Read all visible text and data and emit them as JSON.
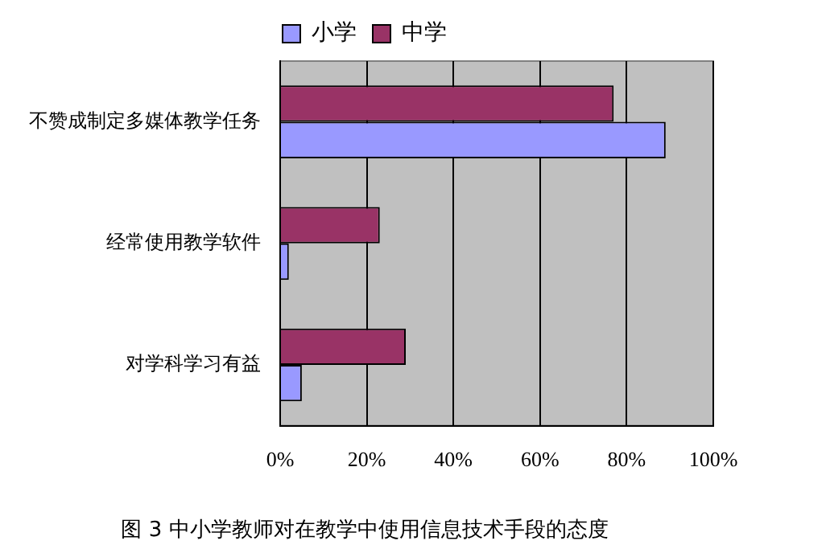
{
  "chart_data": {
    "type": "bar",
    "orientation": "horizontal",
    "title": "图 3 中小学教师对在教学中使用信息技术手段的态度",
    "categories": [
      "不赞成制定多媒体教学任务",
      "经常使用教学软件",
      "对学科学习有益"
    ],
    "series": [
      {
        "name": "中学",
        "color": "#993366",
        "values": [
          77,
          23,
          29
        ]
      },
      {
        "name": "小学",
        "color": "#9999ff",
        "values": [
          89,
          2,
          5
        ]
      }
    ],
    "xlim": [
      0,
      100
    ],
    "xticks": [
      {
        "value": 0,
        "label": "0%"
      },
      {
        "value": 20,
        "label": "20%"
      },
      {
        "value": 40,
        "label": "40%"
      },
      {
        "value": 60,
        "label": "60%"
      },
      {
        "value": 80,
        "label": "80%"
      },
      {
        "value": 100,
        "label": "100%"
      }
    ],
    "grid": "x",
    "legend": "top"
  }
}
